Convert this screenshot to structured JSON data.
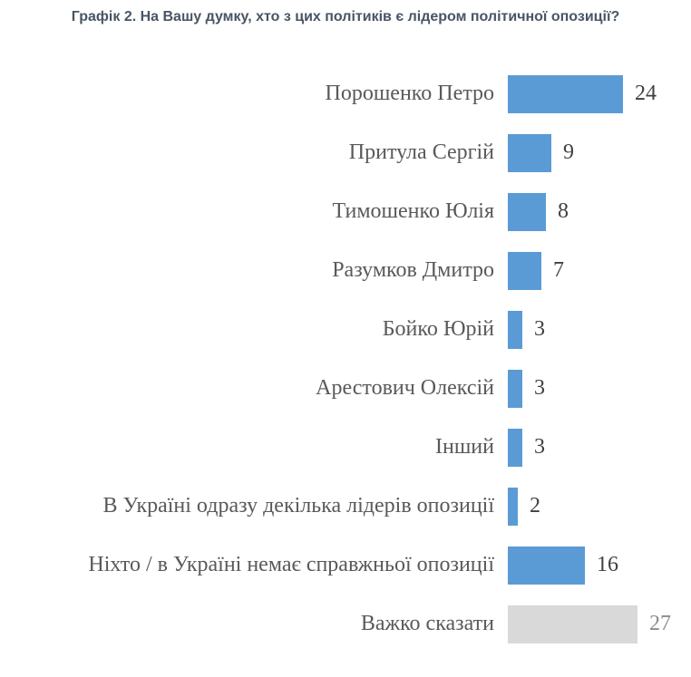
{
  "page": {
    "title": "Графік 2. На Вашу думку, хто з цих політиків є лідером політичної опозиції?"
  },
  "chart_data": {
    "type": "bar",
    "orientation": "horizontal",
    "title": "Графік 2. На Вашу думку, хто з цих політиків є лідером політичної опозиції?",
    "xlabel": "",
    "ylabel": "",
    "xlim": [
      0,
      30
    ],
    "grid": false,
    "legend": "none",
    "value_labels_shown": true,
    "categories": [
      "Порошенко Петро",
      "Притула Сергій",
      "Тимошенко Юлія",
      "Разумков Дмитро",
      "Бойко Юрій",
      "Арестович Олексій",
      "Інший",
      "В Україні одразу декілька лідерів опозиції",
      "Ніхто / в Україні немає справжньої опозиції",
      "Важко сказати"
    ],
    "values": [
      24,
      9,
      8,
      7,
      3,
      3,
      3,
      2,
      16,
      27
    ],
    "bar_colors": [
      "#5B9BD5",
      "#5B9BD5",
      "#5B9BD5",
      "#5B9BD5",
      "#5B9BD5",
      "#5B9BD5",
      "#5B9BD5",
      "#5B9BD5",
      "#5B9BD5",
      "#D9D9D9"
    ],
    "value_colors": [
      "#404040",
      "#404040",
      "#404040",
      "#404040",
      "#404040",
      "#404040",
      "#404040",
      "#404040",
      "#404040",
      "#8c8c8c"
    ],
    "colors": {
      "primary_bar": "#5B9BD5",
      "muted_bar": "#D9D9D9",
      "category_label": "#595959",
      "title": "#485564"
    }
  }
}
